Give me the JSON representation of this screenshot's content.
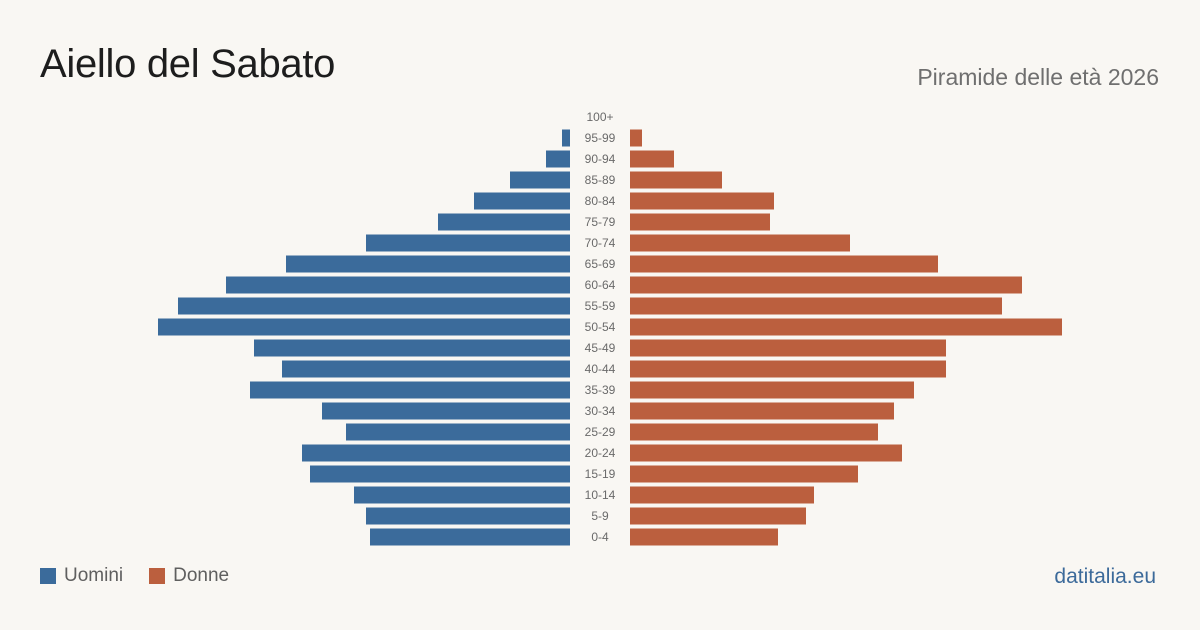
{
  "header": {
    "title": "Aiello del Sabato",
    "subtitle": "Piramide delle età 2026"
  },
  "legend": {
    "men_label": "Uomini",
    "women_label": "Donne"
  },
  "brand": "datitalia.eu",
  "colors": {
    "men": "#3b6b9b",
    "women": "#bb5f3e",
    "background": "#f9f7f3",
    "age_label": "#6a6a6a"
  },
  "chart_data": {
    "type": "bar",
    "orientation": "horizontal-pyramid",
    "categories": [
      "100+",
      "95-99",
      "90-94",
      "85-89",
      "80-84",
      "75-79",
      "70-74",
      "65-69",
      "60-64",
      "55-59",
      "50-54",
      "45-49",
      "40-44",
      "35-39",
      "30-34",
      "25-29",
      "20-24",
      "15-19",
      "10-14",
      "5-9",
      "0-4"
    ],
    "series": [
      {
        "name": "Uomini",
        "values": [
          0,
          2,
          6,
          15,
          24,
          33,
          51,
          71,
          86,
          98,
          103,
          79,
          72,
          80,
          62,
          56,
          67,
          65,
          54,
          51,
          50
        ]
      },
      {
        "name": "Donne",
        "values": [
          0,
          3,
          11,
          23,
          36,
          35,
          55,
          77,
          98,
          93,
          108,
          79,
          79,
          71,
          66,
          62,
          68,
          57,
          46,
          44,
          37
        ]
      }
    ],
    "xlim": [
      0,
      110
    ],
    "grid": false,
    "legend_position": "bottom-left"
  }
}
